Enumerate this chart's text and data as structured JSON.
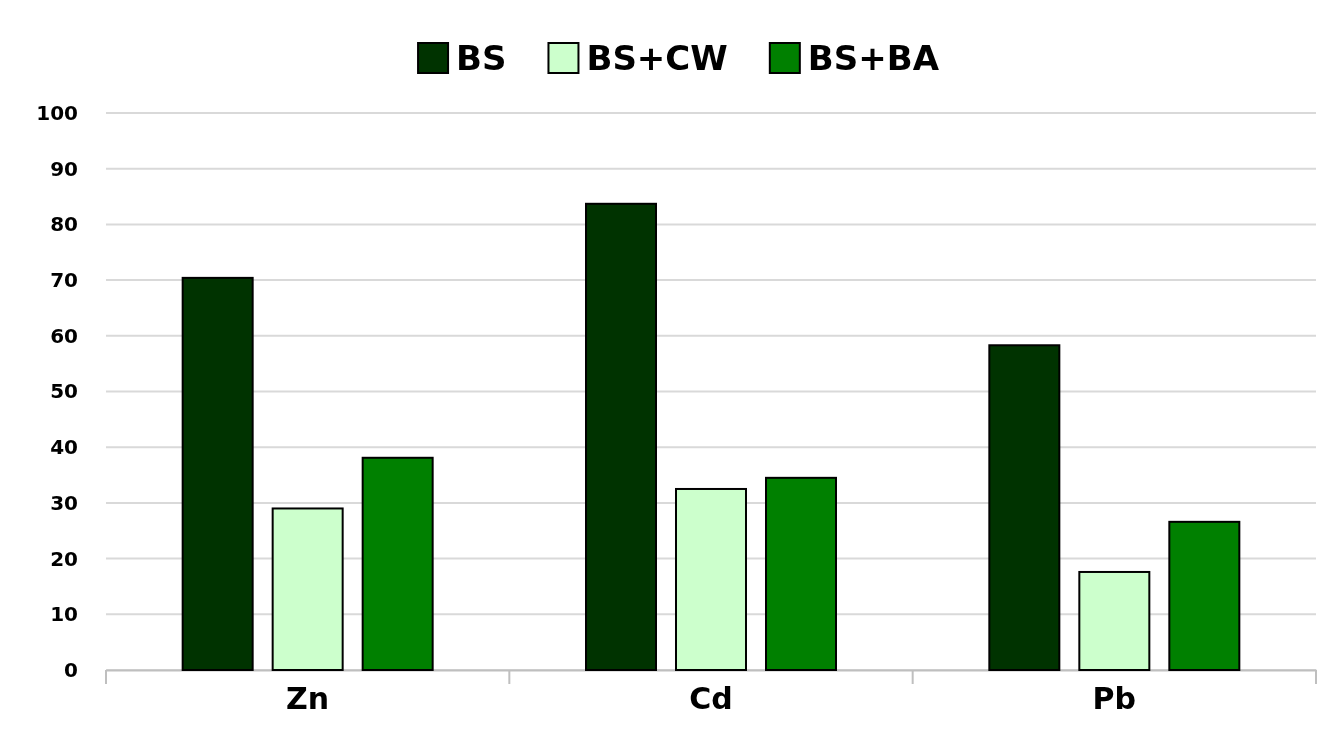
{
  "chart_data": {
    "type": "bar",
    "categories": [
      "Zn",
      "Cd",
      "Pb"
    ],
    "series": [
      {
        "name": "BS",
        "color": "#003300",
        "values": [
          70.4,
          83.7,
          58.3
        ]
      },
      {
        "name": "BS+CW",
        "color": "#ccffcc",
        "values": [
          29,
          32.5,
          17.6
        ]
      },
      {
        "name": "BS+BA",
        "color": "#008000",
        "values": [
          38.1,
          34.5,
          26.6
        ]
      }
    ],
    "ylim": [
      0,
      100
    ],
    "yticks": [
      0,
      10,
      20,
      30,
      40,
      50,
      60,
      70,
      80,
      90,
      100
    ],
    "grid": "y",
    "legend": "top"
  }
}
